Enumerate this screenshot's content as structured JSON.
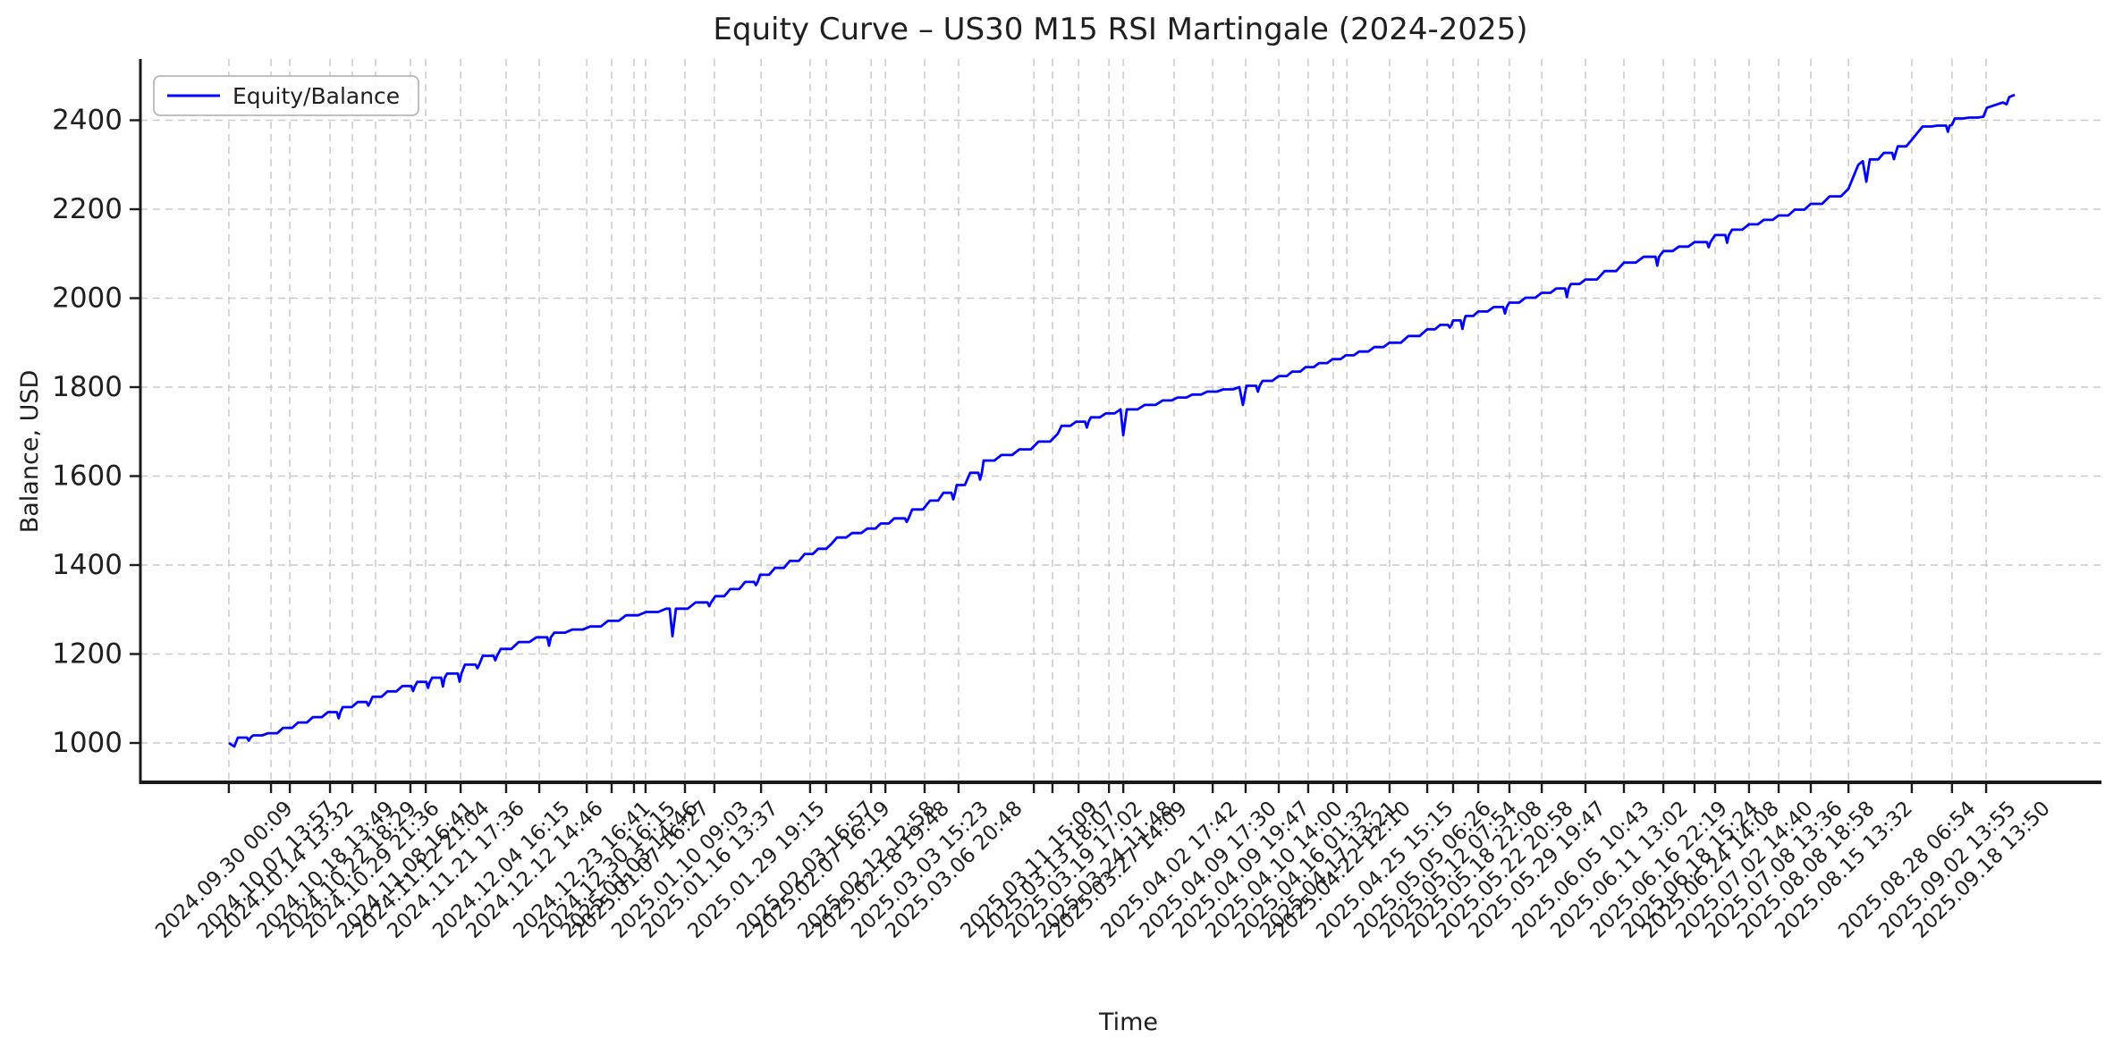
{
  "chart_data": {
    "type": "line",
    "title": "Equity Curve – US30 M15 RSI Martingale (2024-2025)",
    "xlabel": "Time",
    "ylabel": "Balance, USD",
    "legend": {
      "position": "upper left",
      "entries": [
        {
          "label": "Equity/Balance",
          "color": "#0000ff"
        }
      ]
    },
    "grid": true,
    "line_color": "#0000ff",
    "grid_color": "#c9c9c9",
    "spine_color": "#1a1a1a",
    "ylim": [
      900,
      2540
    ],
    "yticks": [
      1000,
      1200,
      1400,
      1600,
      1800,
      2000,
      2200,
      2400
    ],
    "start_balance": 1000,
    "end_balance": 2457,
    "x_ticks": [
      {
        "u": 0.0451,
        "label": "2024.09.30 00:09"
      },
      {
        "u": 0.0666,
        "label": "2024.10.07 13:57"
      },
      {
        "u": 0.0762,
        "label": "2024.10.14 13:32"
      },
      {
        "u": 0.0967,
        "label": "2024.10.18 13:49"
      },
      {
        "u": 0.1081,
        "label": "2024.10.22 18:29"
      },
      {
        "u": 0.1199,
        "label": "2024.10.29 21:36"
      },
      {
        "u": 0.1377,
        "label": "2024.11.08 16:41"
      },
      {
        "u": 0.1455,
        "label": "2024.11.12 21:04"
      },
      {
        "u": 0.1633,
        "label": "2024.11.21 17:36"
      },
      {
        "u": 0.1865,
        "label": "2024.12.04 16:15"
      },
      {
        "u": 0.2034,
        "label": "2024.12.12 14:46"
      },
      {
        "u": 0.2276,
        "label": "2024.12.23 16:41"
      },
      {
        "u": 0.2403,
        "label": "2024.12.30 16:15"
      },
      {
        "u": 0.2517,
        "label": "2025.01.03 14:46"
      },
      {
        "u": 0.2576,
        "label": "2025.01.07 16:27"
      },
      {
        "u": 0.2777,
        "label": "2025.01.10 09:03"
      },
      {
        "u": 0.2927,
        "label": "2025.01.16 13:37"
      },
      {
        "u": 0.3165,
        "label": "2025.01.29 19:15"
      },
      {
        "u": 0.3415,
        "label": "2025.02.03 16:57"
      },
      {
        "u": 0.3497,
        "label": "2025.02.07 16:19"
      },
      {
        "u": 0.3726,
        "label": "2025.02.12 12:58"
      },
      {
        "u": 0.3799,
        "label": "2025.02.18 19:48"
      },
      {
        "u": 0.3999,
        "label": "2025.03.03 15:23"
      },
      {
        "u": 0.4172,
        "label": "2025.03.06 20:48"
      },
      {
        "u": 0.4556,
        "label": "2025.03.11 15:09"
      },
      {
        "u": 0.4651,
        "label": "2025.03.13 18:07"
      },
      {
        "u": 0.4784,
        "label": "2025.03.19 17:02"
      },
      {
        "u": 0.4939,
        "label": "2025.03.24 11:48"
      },
      {
        "u": 0.5012,
        "label": "2025.03.27 14:09"
      },
      {
        "u": 0.5271,
        "label": "2025.04.02 17:42"
      },
      {
        "u": 0.5468,
        "label": "2025.04.09 17:30"
      },
      {
        "u": 0.5636,
        "label": "2025.04.09 19:47"
      },
      {
        "u": 0.5805,
        "label": "2025.04.10 14:00"
      },
      {
        "u": 0.5955,
        "label": "2025.04.16 01:32"
      },
      {
        "u": 0.6083,
        "label": "2025.04.17 13:21"
      },
      {
        "u": 0.6152,
        "label": "2025.04.22 12:10"
      },
      {
        "u": 0.637,
        "label": "2025.04.25 15:15"
      },
      {
        "u": 0.6562,
        "label": "2025.05.05 06:26"
      },
      {
        "u": 0.6694,
        "label": "2025.05.12 07:54"
      },
      {
        "u": 0.6822,
        "label": "2025.05.18 22:08"
      },
      {
        "u": 0.6981,
        "label": "2025.05.22 20:58"
      },
      {
        "u": 0.7146,
        "label": "2025.05.29 19:47"
      },
      {
        "u": 0.7369,
        "label": "2025.06.05 10:43"
      },
      {
        "u": 0.7565,
        "label": "2025.06.11 13:02"
      },
      {
        "u": 0.7766,
        "label": "2025.06.16 22:19"
      },
      {
        "u": 0.7925,
        "label": "2025.06.18 15:24"
      },
      {
        "u": 0.803,
        "label": "2025.06.24 14:08"
      },
      {
        "u": 0.8203,
        "label": "2025.07.02 14:40"
      },
      {
        "u": 0.8354,
        "label": "2025.07.08 13:36"
      },
      {
        "u": 0.8518,
        "label": "2025.08.08 18:58"
      },
      {
        "u": 0.871,
        "label": "2025.08.15 13:32"
      },
      {
        "u": 0.9033,
        "label": "2025.08.28 06:54"
      },
      {
        "u": 0.9238,
        "label": "2025.09.02 13:55"
      },
      {
        "u": 0.9412,
        "label": "2025.09.18 13:50"
      }
    ],
    "series": [
      {
        "name": "Equity/Balance",
        "color": "#0000ff",
        "points": [
          [
            0.0451,
            1000
          ],
          [
            0.0479,
            992
          ],
          [
            0.0497,
            1012
          ],
          [
            0.0652,
            1022
          ],
          [
            0.088,
            1058
          ],
          [
            0.1108,
            1092
          ],
          [
            0.1336,
            1128
          ],
          [
            0.1564,
            1156
          ],
          [
            0.1746,
            1196
          ],
          [
            0.1929,
            1227
          ],
          [
            0.2111,
            1248
          ],
          [
            0.2294,
            1262
          ],
          [
            0.2476,
            1287
          ],
          [
            0.2681,
            1302
          ],
          [
            0.2699,
            1302
          ],
          [
            0.2713,
            1240
          ],
          [
            0.2731,
            1302
          ],
          [
            0.2932,
            1330
          ],
          [
            0.316,
            1378
          ],
          [
            0.3388,
            1425
          ],
          [
            0.3525,
            1448
          ],
          [
            0.3552,
            1462
          ],
          [
            0.3707,
            1482
          ],
          [
            0.3844,
            1505
          ],
          [
            0.4027,
            1545
          ],
          [
            0.4163,
            1580
          ],
          [
            0.43,
            1635
          ],
          [
            0.4482,
            1660
          ],
          [
            0.4678,
            1695
          ],
          [
            0.4697,
            1713
          ],
          [
            0.4847,
            1732
          ],
          [
            0.4998,
            1750
          ],
          [
            0.5012,
            1692
          ],
          [
            0.503,
            1750
          ],
          [
            0.5213,
            1770
          ],
          [
            0.544,
            1790
          ],
          [
            0.5604,
            1800
          ],
          [
            0.5622,
            1760
          ],
          [
            0.564,
            1803
          ],
          [
            0.5805,
            1825
          ],
          [
            0.5942,
            1845
          ],
          [
            0.6079,
            1863
          ],
          [
            0.6215,
            1880
          ],
          [
            0.637,
            1900
          ],
          [
            0.6562,
            1930
          ],
          [
            0.6694,
            1950
          ],
          [
            0.6822,
            1970
          ],
          [
            0.6981,
            1990
          ],
          [
            0.7146,
            2012
          ],
          [
            0.7369,
            2042
          ],
          [
            0.7565,
            2080
          ],
          [
            0.7766,
            2106
          ],
          [
            0.7925,
            2126
          ],
          [
            0.803,
            2142
          ],
          [
            0.8203,
            2166
          ],
          [
            0.8354,
            2186
          ],
          [
            0.8518,
            2212
          ],
          [
            0.871,
            2246
          ],
          [
            0.876,
            2300
          ],
          [
            0.8783,
            2308
          ],
          [
            0.8801,
            2262
          ],
          [
            0.8819,
            2312
          ],
          [
            0.9033,
            2356
          ],
          [
            0.9088,
            2386
          ],
          [
            0.9238,
            2390
          ],
          [
            0.9252,
            2404
          ],
          [
            0.9398,
            2408
          ],
          [
            0.9416,
            2428
          ],
          [
            0.9498,
            2440
          ],
          [
            0.9516,
            2436
          ],
          [
            0.953,
            2452
          ],
          [
            0.9558,
            2457
          ]
        ]
      }
    ]
  }
}
